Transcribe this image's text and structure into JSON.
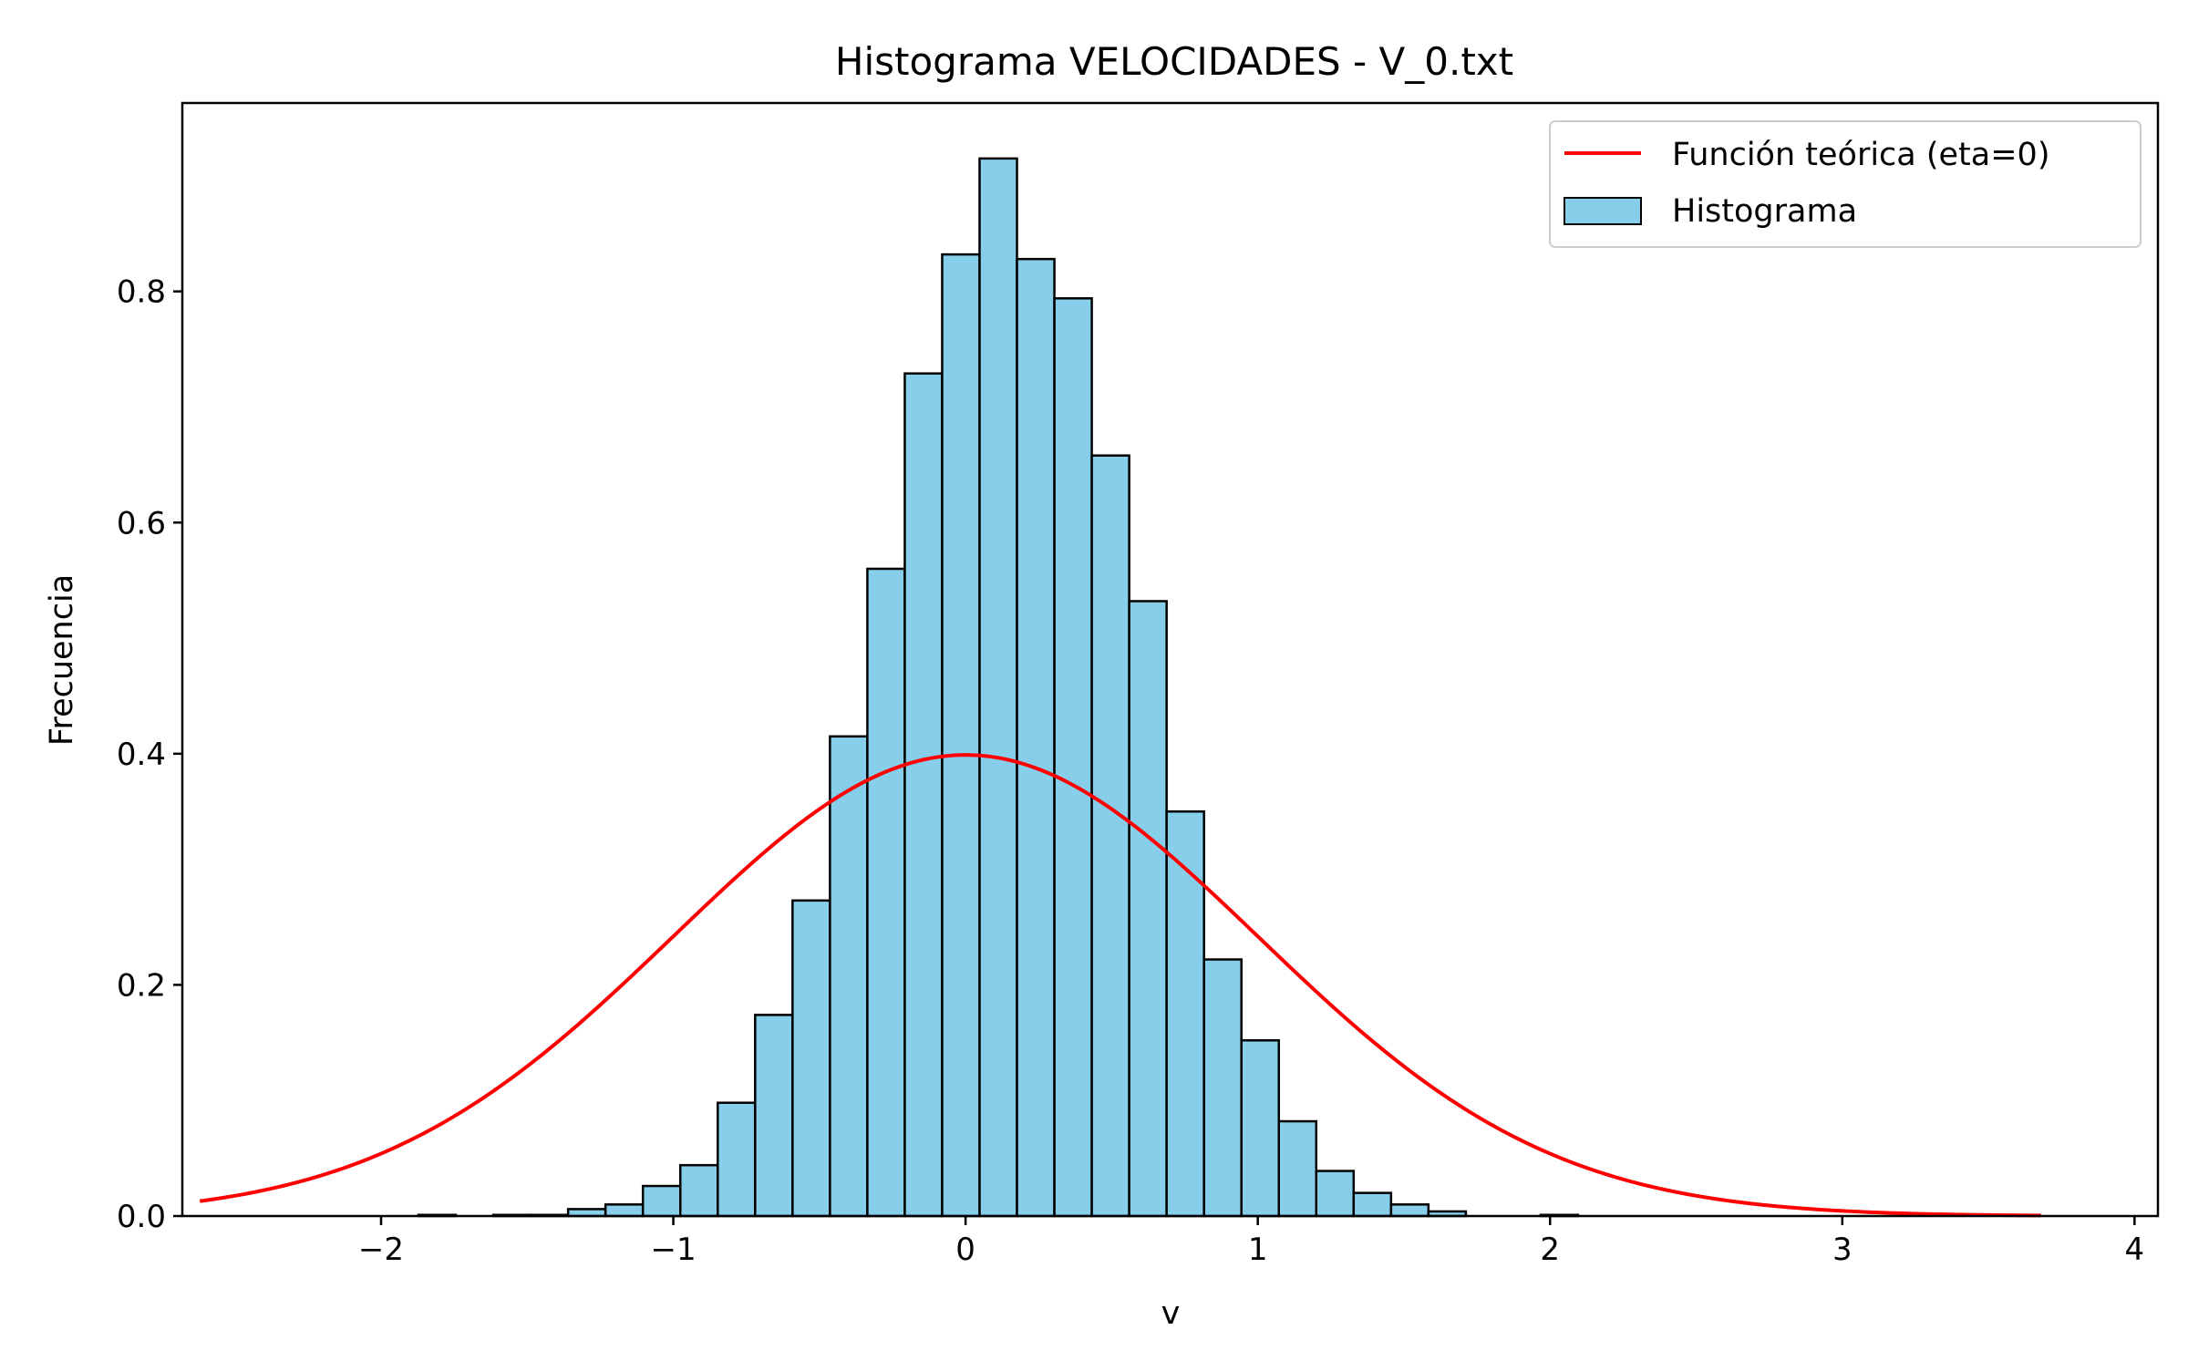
{
  "chart_data": {
    "type": "bar",
    "title": "Histograma VELOCIDADES - V_0.txt",
    "xlabel": "v",
    "ylabel": "Frecuencia",
    "xlim": [
      -2.68,
      4.08
    ],
    "ylim": [
      0.0,
      0.963
    ],
    "grid": false,
    "legend_position": "top-right",
    "x_ticks": [
      -2,
      -1,
      0,
      1,
      2,
      3,
      4
    ],
    "x_tick_labels": [
      "−2",
      "−1",
      "0",
      "1",
      "2",
      "3",
      "4"
    ],
    "y_ticks": [
      0.0,
      0.2,
      0.4,
      0.6,
      0.8
    ],
    "y_tick_labels": [
      "0.0",
      "0.2",
      "0.4",
      "0.6",
      "0.8"
    ],
    "histogram": {
      "name": "Histograma",
      "color": "#87CEEB",
      "edge_color": "#000000",
      "bin_start": -2.64,
      "bin_width": 0.128,
      "values": [
        0.0,
        0.0,
        0.0,
        0.0,
        0.0,
        0.0,
        0.001,
        0.0,
        0.001,
        0.001,
        0.006,
        0.01,
        0.026,
        0.044,
        0.098,
        0.174,
        0.273,
        0.415,
        0.56,
        0.729,
        0.832,
        0.915,
        0.828,
        0.794,
        0.658,
        0.532,
        0.35,
        0.222,
        0.152,
        0.082,
        0.039,
        0.02,
        0.01,
        0.004,
        0.0,
        0.0,
        0.001,
        0.0,
        0.0,
        0.0,
        0.0,
        0.0,
        0.0,
        0.0,
        0.0,
        0.0,
        0.0,
        0.0,
        0.0
      ]
    },
    "curve": {
      "name": "Función teórica (eta=0)",
      "color": "#ff0000",
      "x_range": [
        -2.62,
        3.68
      ],
      "mean": 0.0,
      "std": 1.0
    }
  }
}
